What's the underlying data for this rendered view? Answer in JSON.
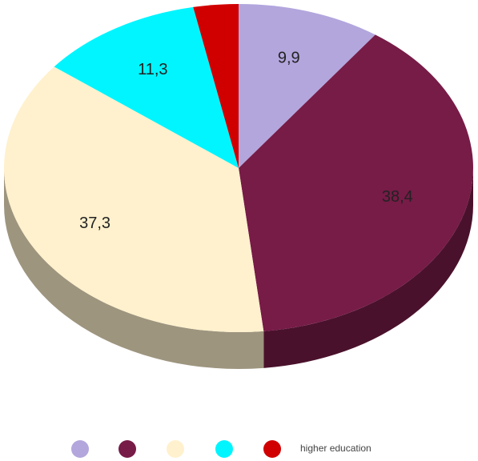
{
  "chart_data": {
    "type": "pie",
    "categories": [
      null,
      null,
      null,
      null,
      "higher education"
    ],
    "values": [
      9.9,
      38.4,
      37.3,
      11.3,
      3.1
    ],
    "value_labels": [
      "9,9",
      "38,4",
      "37,3",
      "11,3",
      null
    ],
    "colors": [
      "#b3a6dd",
      "#771b47",
      "#fff1cd",
      "#00f5ff",
      "#d10000"
    ],
    "legend": "bottom"
  }
}
